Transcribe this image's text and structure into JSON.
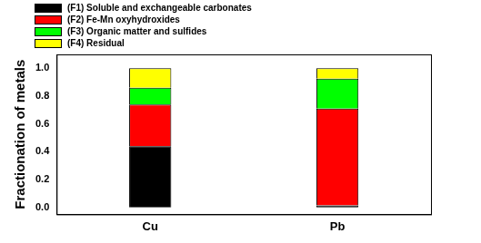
{
  "chart_data": {
    "type": "bar",
    "stacked": true,
    "categories": [
      "Cu",
      "Pb"
    ],
    "series": [
      {
        "name": "(F1) Soluble and exchangeable carbonates",
        "color": "#000000",
        "values": [
          0.44,
          0.015
        ]
      },
      {
        "name": "(F2) Fe-Mn oxyhydroxides",
        "color": "#ff0000",
        "values": [
          0.3,
          0.695
        ]
      },
      {
        "name": "(F3) Organic matter and sulfides",
        "color": "#00ff00",
        "values": [
          0.12,
          0.215
        ]
      },
      {
        "name": "(F4) Residual",
        "color": "#ffff00",
        "values": [
          0.14,
          0.075
        ]
      }
    ],
    "y_label": "Fractionation of metals",
    "ylim": [
      -0.05,
      1.1
    ],
    "yticks": [
      {
        "value": 0,
        "label": "0.0"
      },
      0.2,
      0.4,
      0.6,
      0.8,
      {
        "value": 1,
        "label": "1.0"
      }
    ],
    "grid": false,
    "legend": "upper left"
  }
}
